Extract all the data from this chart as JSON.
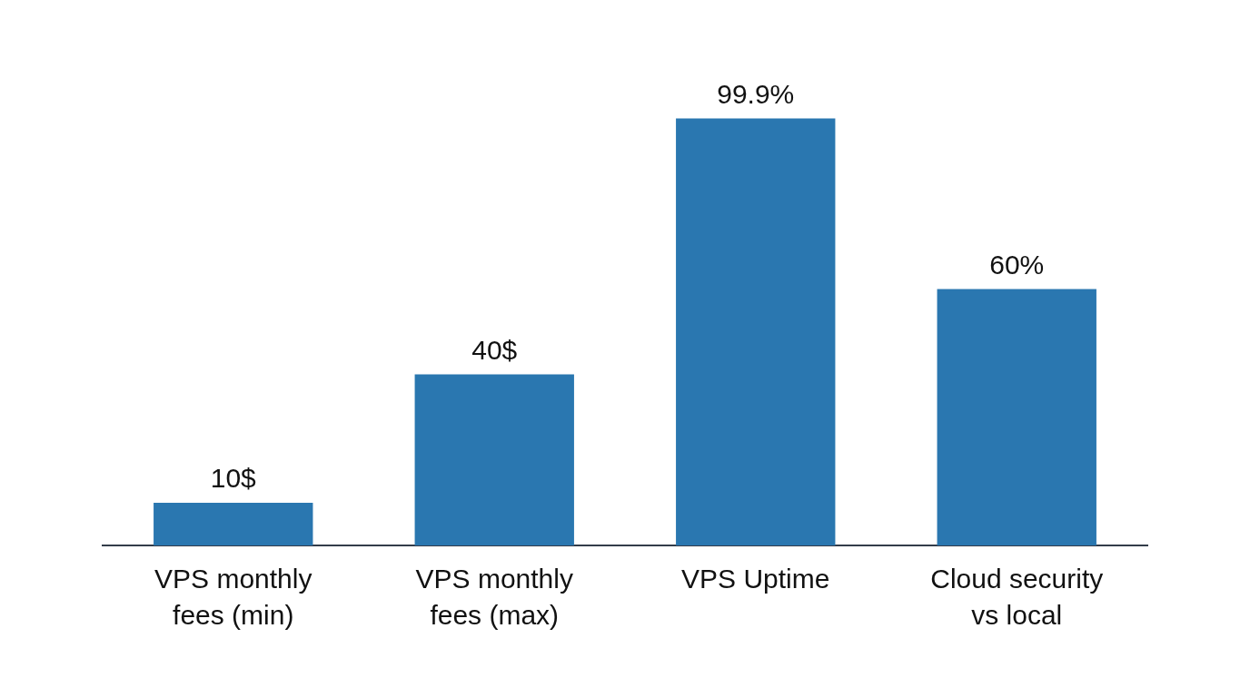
{
  "chart_data": {
    "type": "bar",
    "categories": [
      "VPS monthly fees (min)",
      "VPS monthly fees (max)",
      "VPS Uptime",
      "Cloud security vs local"
    ],
    "values": [
      10,
      40,
      99.9,
      60
    ],
    "value_labels": [
      "10$",
      "40$",
      "99.9%",
      "60%"
    ],
    "color": "#2a77b0",
    "grid": false,
    "legend": false
  }
}
